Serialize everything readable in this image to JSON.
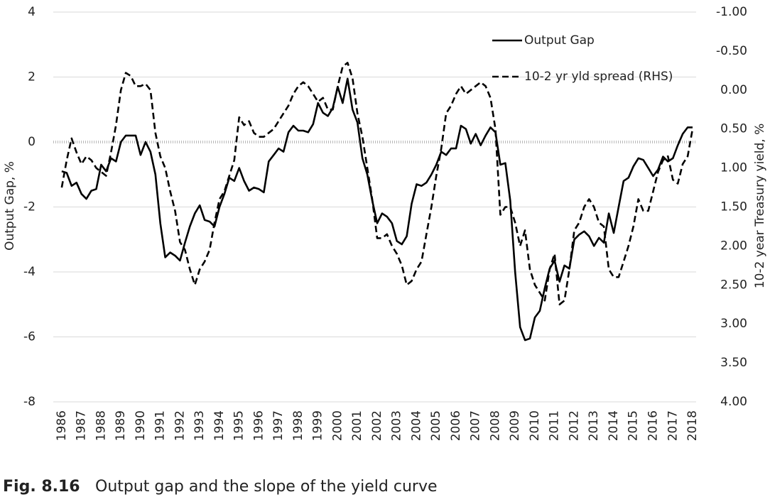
{
  "chart_data": {
    "type": "line",
    "caption_label": "Fig. 8.16",
    "caption": "Output gap and the slope of the yield curve",
    "ylabel": "Output Gap, %",
    "y2label": "10-2 year Treasury yield, %",
    "xlim": [
      1985.57,
      2018.18
    ],
    "xticks": [
      1986,
      1987,
      1988,
      1989,
      1990,
      1991,
      1992,
      1993,
      1994,
      1995,
      1996,
      1997,
      1998,
      1999,
      2000,
      2001,
      2002,
      2003,
      2004,
      2005,
      2006,
      2007,
      2008,
      2009,
      2010,
      2011,
      2012,
      2013,
      2014,
      2015,
      2016,
      2017,
      2018
    ],
    "ylim": [
      -8,
      4
    ],
    "yticks": [
      -8,
      -6,
      -4,
      -2,
      0,
      2,
      4
    ],
    "y2lim": [
      -1,
      4
    ],
    "y2_inverted": true,
    "y2ticks": [
      {
        "value": -1,
        "label": "-1.00"
      },
      {
        "value": -0.5,
        "label": "-0.50"
      },
      {
        "value": 0,
        "label": "0.00"
      },
      {
        "value": 0.5,
        "label": "0.50"
      },
      {
        "value": 1,
        "label": "1.00"
      },
      {
        "value": 1.5,
        "label": "1.50"
      },
      {
        "value": 2,
        "label": "2.00"
      },
      {
        "value": 2.5,
        "label": "2.50"
      },
      {
        "value": 3,
        "label": "3.00"
      },
      {
        "value": 3.5,
        "label": "3.50"
      },
      {
        "value": 4,
        "label": "4.00"
      }
    ],
    "grid": true,
    "zero_line": true,
    "legend": "upper right",
    "x": [
      1986,
      1986.25,
      1986.5,
      1986.75,
      1987,
      1987.25,
      1987.5,
      1987.75,
      1988,
      1988.25,
      1988.5,
      1988.75,
      1989,
      1989.25,
      1989.5,
      1989.75,
      1990,
      1990.25,
      1990.5,
      1990.75,
      1991,
      1991.25,
      1991.5,
      1991.75,
      1992,
      1992.25,
      1992.5,
      1992.75,
      1993,
      1993.25,
      1993.5,
      1993.75,
      1994,
      1994.25,
      1994.5,
      1994.75,
      1995,
      1995.25,
      1995.5,
      1995.75,
      1996,
      1996.25,
      1996.5,
      1996.75,
      1997,
      1997.25,
      1997.5,
      1997.75,
      1998,
      1998.25,
      1998.5,
      1998.75,
      1999,
      1999.25,
      1999.5,
      1999.75,
      2000,
      2000.25,
      2000.5,
      2000.75,
      2001,
      2001.25,
      2001.5,
      2001.75,
      2002,
      2002.25,
      2002.5,
      2002.75,
      2003,
      2003.25,
      2003.5,
      2003.75,
      2004,
      2004.25,
      2004.5,
      2004.75,
      2005,
      2005.25,
      2005.5,
      2005.75,
      2006,
      2006.25,
      2006.5,
      2006.75,
      2007,
      2007.25,
      2007.5,
      2007.75,
      2008,
      2008.25,
      2008.5,
      2008.75,
      2009,
      2009.25,
      2009.5,
      2009.75,
      2010,
      2010.25,
      2010.5,
      2010.75,
      2011,
      2011.25,
      2011.5,
      2011.75,
      2012,
      2012.25,
      2012.5,
      2012.75,
      2013,
      2013.25,
      2013.5,
      2013.75,
      2014,
      2014.25,
      2014.5,
      2014.75,
      2015,
      2015.25,
      2015.5,
      2015.75,
      2016,
      2016.25,
      2016.5,
      2016.75,
      2017,
      2017.25,
      2017.5,
      2017.75,
      2018
    ],
    "series": [
      {
        "name": "Output Gap",
        "color": "#000000",
        "dash": "solid",
        "values": [
          -0.9,
          -0.95,
          -1.35,
          -1.25,
          -1.6,
          -1.75,
          -1.5,
          -1.45,
          -0.7,
          -0.9,
          -0.5,
          -0.6,
          0.0,
          0.2,
          0.2,
          0.2,
          -0.4,
          0.0,
          -0.3,
          -1.0,
          -2.5,
          -3.55,
          -3.4,
          -3.5,
          -3.65,
          -3.1,
          -2.6,
          -2.2,
          -1.95,
          -2.4,
          -2.45,
          -2.6,
          -2.0,
          -1.6,
          -1.1,
          -1.2,
          -0.8,
          -1.2,
          -1.5,
          -1.4,
          -1.45,
          -1.55,
          -0.6,
          -0.4,
          -0.2,
          -0.3,
          0.3,
          0.5,
          0.35,
          0.35,
          0.3,
          0.55,
          1.2,
          0.9,
          0.8,
          1.05,
          1.7,
          1.2,
          1.95,
          1.0,
          0.6,
          -0.5,
          -1.0,
          -1.8,
          -2.5,
          -2.2,
          -2.3,
          -2.5,
          -3.05,
          -3.15,
          -2.9,
          -1.9,
          -1.3,
          -1.35,
          -1.25,
          -1.0,
          -0.7,
          -0.3,
          -0.4,
          -0.2,
          -0.2,
          0.5,
          0.4,
          -0.05,
          0.25,
          -0.1,
          0.2,
          0.45,
          0.3,
          -0.7,
          -0.65,
          -1.8,
          -4.0,
          -5.7,
          -6.1,
          -6.05,
          -5.4,
          -5.2,
          -4.5,
          -3.9,
          -3.65,
          -4.3,
          -3.8,
          -3.9,
          -3.0,
          -2.85,
          -2.75,
          -2.9,
          -3.2,
          -2.95,
          -3.1,
          -2.2,
          -2.8,
          -2.0,
          -1.2,
          -1.1,
          -0.75,
          -0.5,
          -0.55,
          -0.8,
          -1.05,
          -0.85,
          -0.45,
          -0.6,
          -0.5,
          -0.1,
          0.25,
          0.45,
          0.45
        ]
      },
      {
        "name": "10-2 yr yld spread (RHS)",
        "color": "#000000",
        "dash": "dashed",
        "axis": "y2",
        "values": [
          1.25,
          0.9,
          0.62,
          0.8,
          0.95,
          0.85,
          0.9,
          1.0,
          1.05,
          1.1,
          0.8,
          0.45,
          0.0,
          -0.22,
          -0.18,
          -0.05,
          -0.05,
          -0.08,
          0.0,
          0.55,
          0.85,
          1.0,
          1.3,
          1.55,
          1.95,
          2.05,
          2.3,
          2.5,
          2.3,
          2.2,
          2.05,
          1.7,
          1.4,
          1.3,
          1.1,
          0.9,
          0.35,
          0.45,
          0.4,
          0.55,
          0.6,
          0.6,
          0.55,
          0.5,
          0.4,
          0.3,
          0.2,
          0.05,
          -0.05,
          -0.1,
          -0.05,
          0.05,
          0.15,
          0.1,
          0.25,
          0.25,
          -0.05,
          -0.3,
          -0.35,
          -0.15,
          0.3,
          0.6,
          1.0,
          1.4,
          1.9,
          1.9,
          1.85,
          2.0,
          2.1,
          2.25,
          2.5,
          2.45,
          2.3,
          2.2,
          1.85,
          1.5,
          1.1,
          0.75,
          0.3,
          0.2,
          0.05,
          -0.05,
          0.05,
          0.0,
          -0.05,
          -0.1,
          -0.05,
          0.1,
          0.5,
          1.6,
          1.5,
          1.5,
          1.7,
          2.0,
          1.8,
          2.3,
          2.5,
          2.6,
          2.7,
          2.3,
          2.1,
          2.75,
          2.7,
          2.3,
          1.8,
          1.7,
          1.5,
          1.4,
          1.5,
          1.7,
          1.75,
          2.3,
          2.4,
          2.4,
          2.2,
          2.0,
          1.75,
          1.4,
          1.55,
          1.55,
          1.3,
          1.05,
          0.9,
          0.85,
          1.15,
          1.2,
          0.95,
          0.85,
          0.5
        ]
      }
    ]
  }
}
